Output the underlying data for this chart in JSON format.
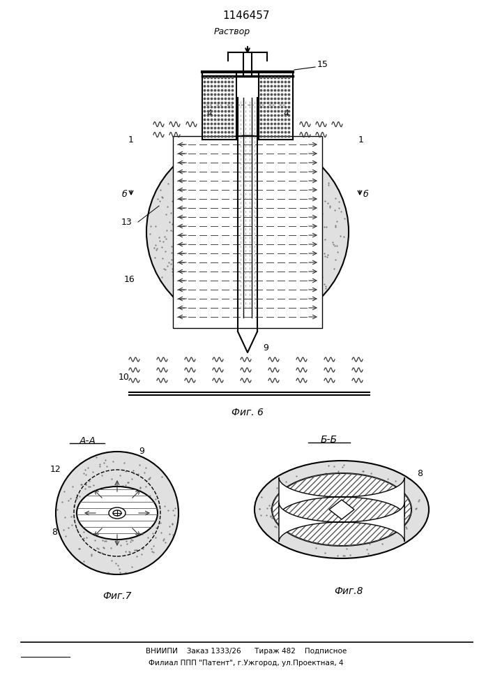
{
  "title": "1146457",
  "fig6_label": "Фиг. 6",
  "fig7_label": "Фиг.7",
  "fig8_label": "Фиг.8",
  "aa_label": "А-А",
  "bb_label": "Б-Б",
  "rastvor_label": "Раствор",
  "bottom_text1": "ВНИИПИ    Заказ 1333/26      Тираж 482    Подписное",
  "bottom_text2": "Филиал ППП \"Патент\", г.Ужгород, ул.Проектная, 4",
  "bg_color": "#ffffff",
  "line_color": "#000000"
}
